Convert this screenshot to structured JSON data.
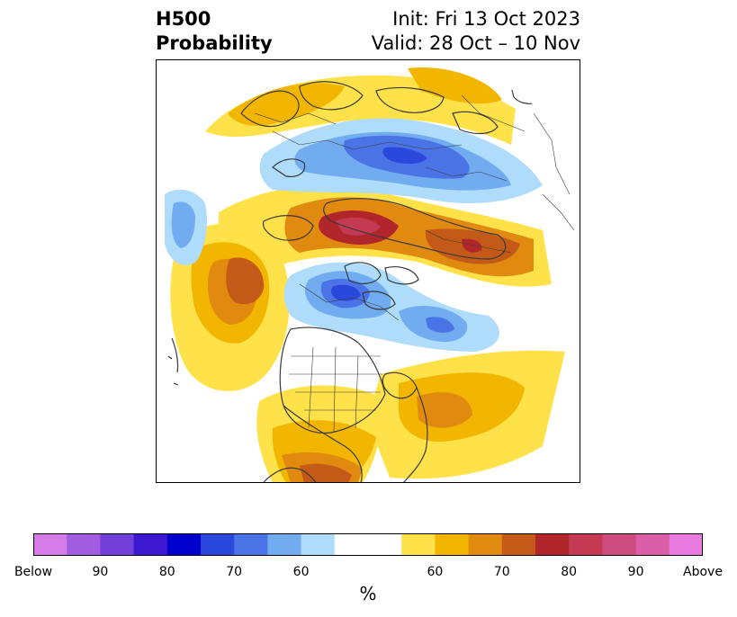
{
  "title": {
    "left_line1": "H500",
    "left_line2": "Probability",
    "right_line1": "Init: Fri 13 Oct 2023",
    "right_line2": "Valid: 28 Oct – 10 Nov"
  },
  "colorbar": {
    "unit": "%",
    "colors": [
      "#d67ce8",
      "#a25ce0",
      "#7040d8",
      "#3c18d0",
      "#0000cc",
      "#2a48dc",
      "#4a74e6",
      "#72acf0",
      "#aedcfa",
      "#ffffff",
      "#ffffff",
      "#ffe14a",
      "#f2b600",
      "#e08a10",
      "#c45a18",
      "#b0262a",
      "#c43a52",
      "#cc4c80",
      "#da5ea8",
      "#e87ae0"
    ],
    "tick_labels": [
      "Below",
      "90",
      "80",
      "70",
      "60",
      "60",
      "70",
      "80",
      "90",
      "Above"
    ]
  },
  "map": {
    "projection": "polar stereographic (north pole)",
    "above_color": "#f2b600",
    "below_color": "#4a74e6"
  }
}
